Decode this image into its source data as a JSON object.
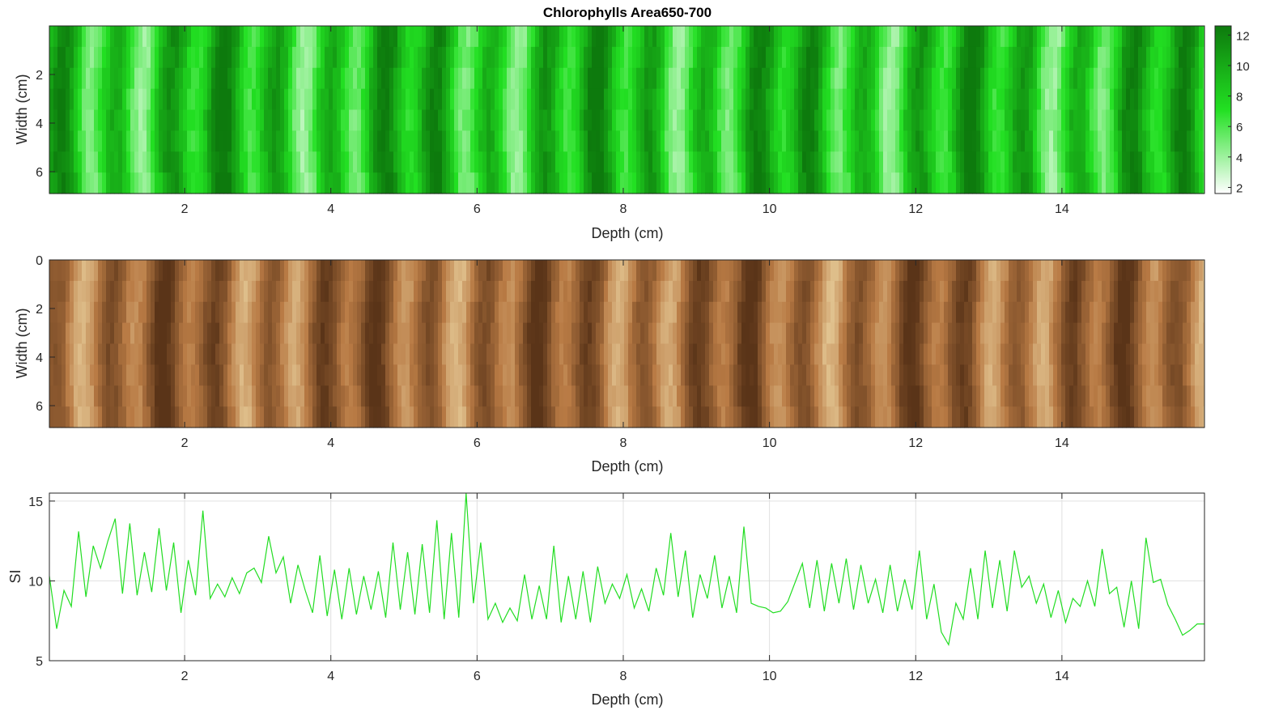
{
  "colors": {
    "green_high": "#1a8a1a",
    "green_mid": "#22e022",
    "green_low": "#e8ffe8",
    "sediment_light": "#e6c38a",
    "sediment_dark": "#9a5a2c",
    "si_line": "#22dd22",
    "grid": "#e0e0e0",
    "axis": "#262626"
  },
  "chart_data": [
    {
      "type": "heatmap",
      "title": "Chlorophylls Area650-700",
      "xlabel": "Depth (cm)",
      "ylabel": "Width (cm)",
      "xlim": [
        0.15,
        15.95
      ],
      "ylim": [
        0,
        6.9
      ],
      "x_ticks": [
        2,
        4,
        6,
        8,
        10,
        12,
        14
      ],
      "y_ticks": [
        2,
        4,
        6
      ],
      "colorbar": {
        "range": [
          1.6,
          12.6
        ],
        "ticks": [
          2,
          4,
          6,
          8,
          10,
          12
        ]
      },
      "colormap": [
        "#ffffff",
        "#22e022",
        "#0d7a0d"
      ]
    },
    {
      "type": "heatmap",
      "title": "",
      "xlabel": "Depth (cm)",
      "ylabel": "Width (cm)",
      "xlim": [
        0.15,
        15.95
      ],
      "ylim": [
        0,
        6.9
      ],
      "x_ticks": [
        2,
        4,
        6,
        8,
        10,
        12,
        14
      ],
      "y_ticks": [
        0,
        2,
        4,
        6
      ],
      "colormap": [
        "#f3e2b0",
        "#b87a44",
        "#5a3418"
      ]
    },
    {
      "type": "line",
      "title": "",
      "xlabel": "Depth (cm)",
      "ylabel": "SI",
      "xlim": [
        0.15,
        15.95
      ],
      "ylim": [
        5,
        15.5
      ],
      "x_ticks": [
        2,
        4,
        6,
        8,
        10,
        12,
        14
      ],
      "y_ticks": [
        5,
        10,
        15
      ],
      "grid": true,
      "series": [
        {
          "x": [
            0.15,
            0.25,
            0.35,
            0.45,
            0.55,
            0.65,
            0.75,
            0.85,
            0.95,
            1.05,
            1.15,
            1.25,
            1.35,
            1.45,
            1.55,
            1.65,
            1.75,
            1.85,
            1.95,
            2.05,
            2.15,
            2.25,
            2.35,
            2.45,
            2.55,
            2.65,
            2.75,
            2.85,
            2.95,
            3.05,
            3.15,
            3.25,
            3.35,
            3.45,
            3.55,
            3.65,
            3.75,
            3.85,
            3.95,
            4.05,
            4.15,
            4.25,
            4.35,
            4.45,
            4.55,
            4.65,
            4.75,
            4.85,
            4.95,
            5.05,
            5.15,
            5.25,
            5.35,
            5.45,
            5.55,
            5.65,
            5.75,
            5.85,
            5.95,
            6.05,
            6.15,
            6.25,
            6.35,
            6.45,
            6.55,
            6.65,
            6.75,
            6.85,
            6.95,
            7.05,
            7.15,
            7.25,
            7.35,
            7.45,
            7.55,
            7.65,
            7.75,
            7.85,
            7.95,
            8.05,
            8.15,
            8.25,
            8.35,
            8.45,
            8.55,
            8.65,
            8.75,
            8.85,
            8.95,
            9.05,
            9.15,
            9.25,
            9.35,
            9.45,
            9.55,
            9.65,
            9.75,
            9.85,
            9.95,
            10.05,
            10.15,
            10.25,
            10.35,
            10.45,
            10.55,
            10.65,
            10.75,
            10.85,
            10.95,
            11.05,
            11.15,
            11.25,
            11.35,
            11.45,
            11.55,
            11.65,
            11.75,
            11.85,
            11.95,
            12.05,
            12.15,
            12.25,
            12.35,
            12.45,
            12.55,
            12.65,
            12.75,
            12.85,
            12.95,
            13.05,
            13.15,
            13.25,
            13.35,
            13.45,
            13.55,
            13.65,
            13.75,
            13.85,
            13.95,
            14.05,
            14.15,
            14.25,
            14.35,
            14.45,
            14.55,
            14.65,
            14.75,
            14.85,
            14.95,
            15.05,
            15.15,
            15.25,
            15.35,
            15.45,
            15.55,
            15.65,
            15.75,
            15.85,
            15.95
          ],
          "y": [
            10.3,
            7.0,
            9.4,
            8.4,
            13.1,
            9.0,
            12.2,
            10.8,
            12.5,
            13.9,
            9.2,
            13.6,
            9.1,
            11.8,
            9.3,
            13.3,
            9.4,
            12.4,
            8.0,
            11.3,
            9.1,
            14.4,
            8.9,
            9.8,
            9.0,
            10.2,
            9.2,
            10.5,
            10.8,
            9.9,
            12.8,
            10.5,
            11.5,
            8.6,
            11.0,
            9.4,
            8.0,
            11.6,
            7.8,
            10.7,
            7.6,
            10.8,
            7.9,
            10.3,
            8.2,
            10.6,
            7.7,
            12.4,
            8.2,
            11.8,
            7.9,
            12.3,
            8.0,
            13.8,
            7.6,
            13.0,
            7.7,
            15.5,
            8.6,
            12.4,
            7.6,
            8.6,
            7.4,
            8.3,
            7.5,
            10.4,
            7.6,
            9.7,
            7.6,
            12.2,
            7.4,
            10.3,
            7.6,
            10.6,
            7.4,
            10.9,
            8.6,
            9.8,
            8.9,
            10.4,
            8.3,
            9.5,
            8.1,
            10.8,
            9.1,
            13.0,
            9.0,
            11.9,
            7.7,
            10.4,
            8.9,
            11.6,
            8.3,
            10.3,
            8.0,
            13.4,
            8.6,
            8.4,
            8.3,
            8.0,
            8.1,
            8.7,
            9.9,
            11.1,
            8.3,
            11.3,
            8.1,
            11.1,
            8.6,
            11.4,
            8.2,
            11.0,
            8.6,
            10.1,
            8.0,
            11.0,
            8.1,
            10.1,
            8.2,
            11.9,
            7.6,
            9.8,
            6.8,
            6.0,
            8.6,
            7.6,
            10.8,
            7.6,
            11.9,
            8.3,
            11.3,
            8.1,
            11.9,
            9.6,
            10.3,
            8.6,
            9.8,
            7.7,
            9.4,
            7.4,
            8.9,
            8.4,
            10.0,
            8.4,
            12.0,
            9.2,
            9.6,
            7.1,
            10.0,
            7.0,
            12.7,
            9.9,
            10.1,
            8.5,
            7.6,
            6.6,
            6.9,
            7.3,
            7.3
          ]
        }
      ]
    }
  ]
}
